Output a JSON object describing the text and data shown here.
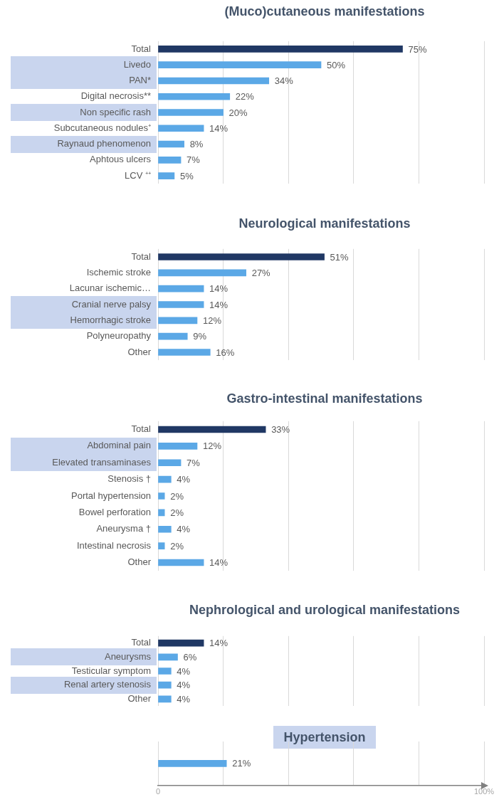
{
  "chart_data": [
    {
      "type": "bar",
      "orientation": "horizontal",
      "title": "(Muco)cutaneous manifestations",
      "categories": [
        "Total",
        "Livedo",
        "PAN*",
        "Digital necrosis**",
        "Non specific rash",
        "Subcutaneous nodules⁺",
        "Raynaud phenomenon",
        "Aphtous ulcers",
        "LCV ⁺⁺"
      ],
      "values": [
        75,
        50,
        34,
        22,
        20,
        14,
        8,
        7,
        5
      ],
      "value_labels": [
        "75%",
        "50%",
        "34%",
        "22%",
        "20%",
        "14%",
        "8%",
        "7%",
        "5%"
      ],
      "colors": [
        "#203864",
        "#5ba8e6",
        "#5ba8e6",
        "#5ba8e6",
        "#5ba8e6",
        "#5ba8e6",
        "#5ba8e6",
        "#5ba8e6",
        "#5ba8e6"
      ],
      "xlim": [
        0,
        100
      ],
      "xticks": [
        {
          "value": 0,
          "label": null
        },
        {
          "value": 20,
          "label": null
        },
        {
          "value": 40,
          "label": null
        },
        {
          "value": 60,
          "label": null
        },
        {
          "value": 80,
          "label": null
        },
        {
          "value": 100,
          "label": null
        }
      ],
      "grid": "x",
      "tick_labels": "y"
    },
    {
      "type": "bar",
      "orientation": "horizontal",
      "title": "Neurological manifestations",
      "categories": [
        "Total",
        "Ischemic stroke",
        "Lacunar ischemic…",
        "Cranial nerve palsy",
        "Hemorrhagic stroke",
        "Polyneuropathy",
        "Other"
      ],
      "values": [
        51,
        27,
        14,
        14,
        12,
        9,
        16
      ],
      "value_labels": [
        "51%",
        "27%",
        "14%",
        "14%",
        "12%",
        "9%",
        "16%"
      ],
      "colors": [
        "#203864",
        "#5ba8e6",
        "#5ba8e6",
        "#5ba8e6",
        "#5ba8e6",
        "#5ba8e6",
        "#5ba8e6"
      ],
      "xlim": [
        0,
        100
      ],
      "xticks": [
        {
          "value": 0,
          "label": null
        },
        {
          "value": 20,
          "label": null
        },
        {
          "value": 40,
          "label": null
        },
        {
          "value": 60,
          "label": null
        },
        {
          "value": 80,
          "label": null
        },
        {
          "value": 100,
          "label": null
        }
      ],
      "grid": "x",
      "tick_labels": "y"
    },
    {
      "type": "bar",
      "orientation": "horizontal",
      "title": "Gastro-intestinal manifestations",
      "categories": [
        "Total",
        "Abdominal pain",
        "Elevated transaminases",
        "Stenosis †",
        "Portal hypertension",
        "Bowel perforation",
        "Aneurysma †",
        "Intestinal necrosis",
        "Other"
      ],
      "values": [
        33,
        12,
        7,
        4,
        2,
        2,
        4,
        2,
        14
      ],
      "value_labels": [
        "33%",
        "12%",
        "7%",
        "4%",
        "2%",
        "2%",
        "4%",
        "2%",
        "14%"
      ],
      "colors": [
        "#203864",
        "#5ba8e6",
        "#5ba8e6",
        "#5ba8e6",
        "#5ba8e6",
        "#5ba8e6",
        "#5ba8e6",
        "#5ba8e6",
        "#5ba8e6"
      ],
      "xlim": [
        0,
        100
      ],
      "xticks": [
        {
          "value": 0,
          "label": null
        },
        {
          "value": 20,
          "label": null
        },
        {
          "value": 40,
          "label": null
        },
        {
          "value": 60,
          "label": null
        },
        {
          "value": 80,
          "label": null
        },
        {
          "value": 100,
          "label": null
        }
      ],
      "grid": "x",
      "tick_labels": "y"
    },
    {
      "type": "bar",
      "orientation": "horizontal",
      "title": "Nephrological and urological manifestations",
      "categories": [
        "Total",
        "Aneurysms",
        "Testicular symptom",
        "Renal artery stenosis",
        "Other"
      ],
      "values": [
        14,
        6,
        4,
        4,
        4
      ],
      "value_labels": [
        "14%",
        "6%",
        "4%",
        "4%",
        "4%"
      ],
      "colors": [
        "#203864",
        "#5ba8e6",
        "#5ba8e6",
        "#5ba8e6",
        "#5ba8e6"
      ],
      "xlim": [
        0,
        100
      ],
      "xticks": [
        {
          "value": 0,
          "label": null
        },
        {
          "value": 20,
          "label": null
        },
        {
          "value": 40,
          "label": null
        },
        {
          "value": 60,
          "label": null
        },
        {
          "value": 80,
          "label": null
        },
        {
          "value": 100,
          "label": null
        }
      ],
      "grid": "x",
      "tick_labels": "y"
    },
    {
      "type": "bar",
      "orientation": "horizontal",
      "title": "Hypertension",
      "categories": [
        null
      ],
      "values": [
        21
      ],
      "value_labels": [
        "21%"
      ],
      "colors": [
        "#5ba8e6"
      ],
      "xlim": [
        0,
        100
      ],
      "xticks": [
        0,
        {
          "value": 20,
          "label": null
        },
        {
          "value": 40,
          "label": null
        },
        {
          "value": 60,
          "label": null
        },
        {
          "value": 80,
          "label": null
        },
        {
          "value": 100,
          "label": "100%"
        }
      ],
      "grid": "x",
      "tick_labels": "x"
    }
  ]
}
